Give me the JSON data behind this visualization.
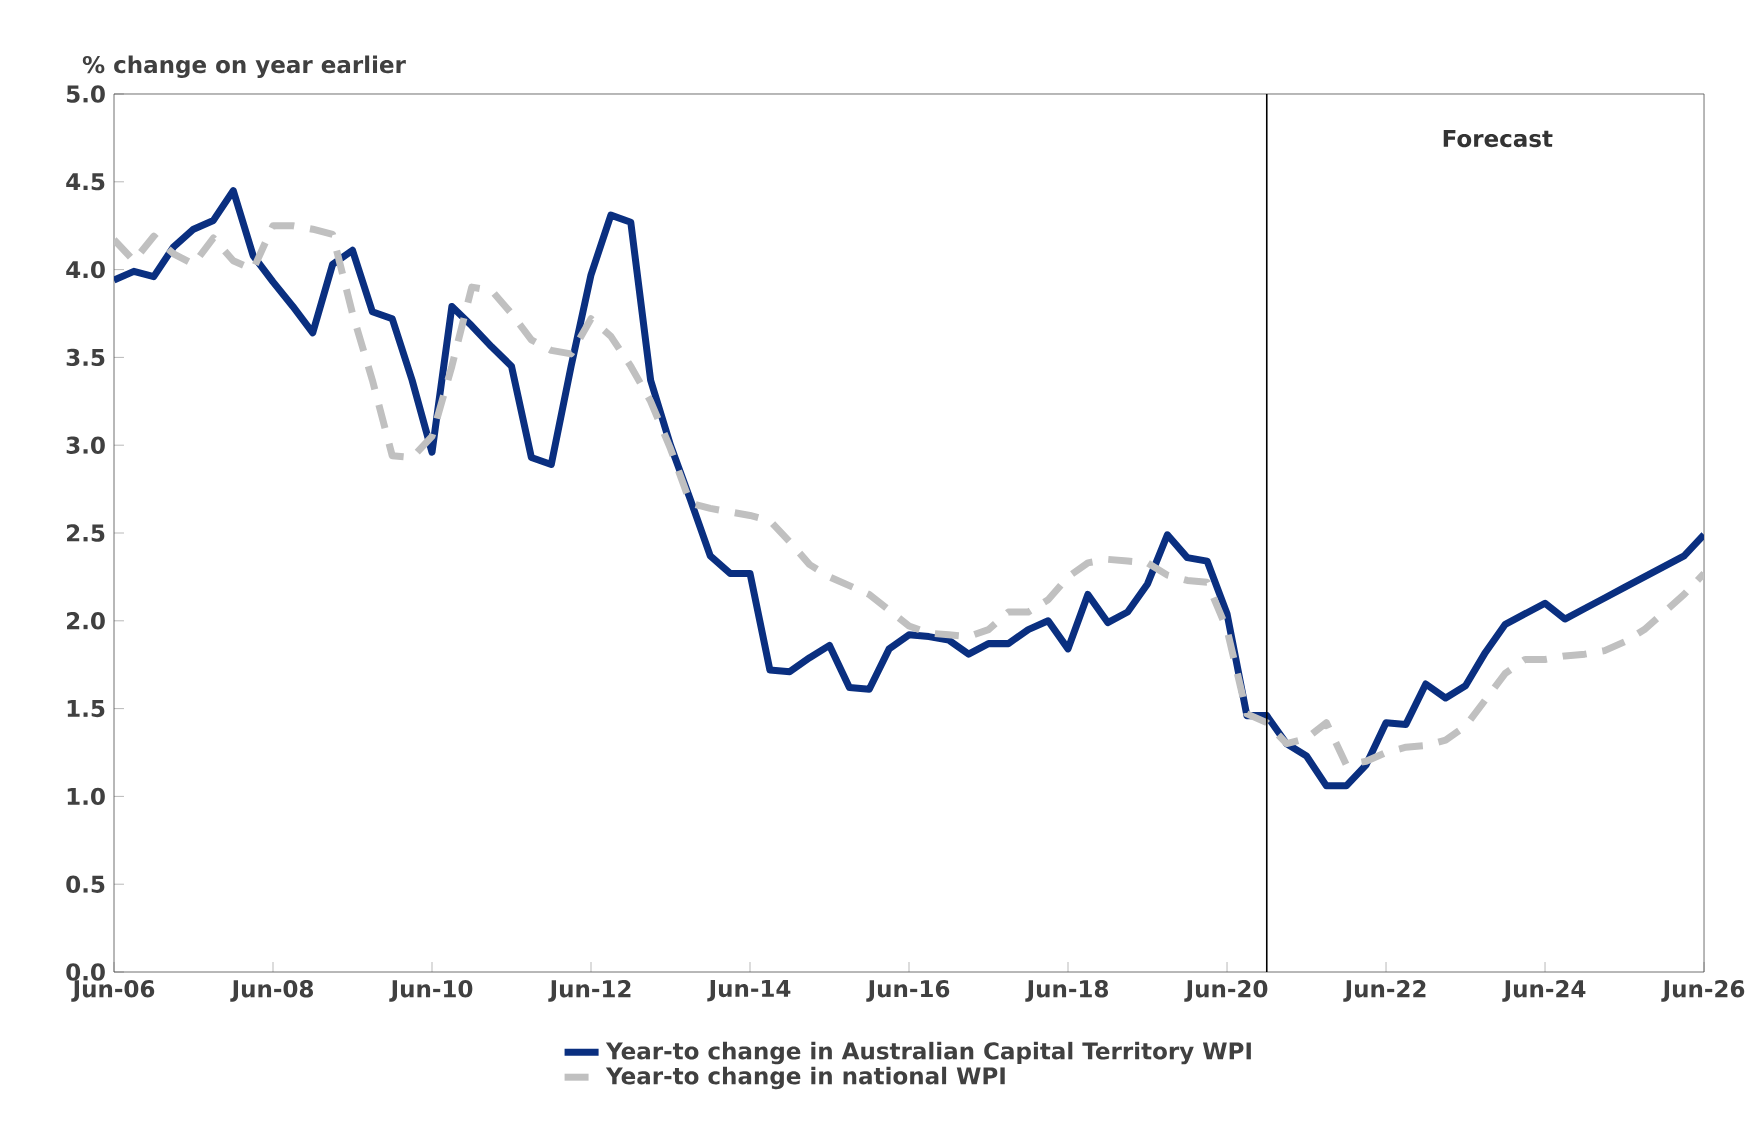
{
  "chart_data": {
    "type": "line",
    "ylabel": "% change on year earlier",
    "x": [
      "2006-06",
      "2006-09",
      "2006-12",
      "2007-03",
      "2007-06",
      "2007-09",
      "2007-12",
      "2008-03",
      "2008-06",
      "2008-09",
      "2008-12",
      "2009-03",
      "2009-06",
      "2009-09",
      "2009-12",
      "2010-03",
      "2010-06",
      "2010-09",
      "2010-12",
      "2011-03",
      "2011-06",
      "2011-09",
      "2011-12",
      "2012-03",
      "2012-06",
      "2012-09",
      "2012-12",
      "2013-03",
      "2013-06",
      "2013-09",
      "2013-12",
      "2014-03",
      "2014-06",
      "2014-09",
      "2014-12",
      "2015-03",
      "2015-06",
      "2015-09",
      "2015-12",
      "2016-03",
      "2016-06",
      "2016-09",
      "2016-12",
      "2017-03",
      "2017-06",
      "2017-09",
      "2017-12",
      "2018-03",
      "2018-06",
      "2018-09",
      "2018-12",
      "2019-03",
      "2019-06",
      "2019-09",
      "2019-12",
      "2020-03",
      "2020-06",
      "2020-09",
      "2020-12",
      "2021-03",
      "2021-06",
      "2021-09",
      "2021-12",
      "2022-03",
      "2022-06",
      "2022-09",
      "2022-12",
      "2023-03",
      "2023-06",
      "2023-09",
      "2023-12",
      "2024-03",
      "2024-06",
      "2024-09",
      "2024-12",
      "2025-03",
      "2025-06",
      "2025-09",
      "2025-12",
      "2026-03",
      "2026-06"
    ],
    "series": [
      {
        "name": "Year-to change in Australian Capital Territory WPI",
        "color": "#0a2f80",
        "line_style": "solid",
        "values": [
          3.94,
          3.99,
          3.96,
          4.13,
          4.23,
          4.28,
          4.45,
          4.08,
          3.93,
          3.79,
          3.64,
          4.03,
          4.11,
          3.76,
          3.72,
          3.37,
          2.96,
          3.79,
          3.68,
          3.56,
          3.45,
          2.93,
          2.89,
          3.45,
          3.97,
          4.31,
          4.27,
          3.37,
          3.0,
          2.69,
          2.37,
          2.27,
          2.27,
          1.72,
          1.71,
          1.79,
          1.86,
          1.62,
          1.61,
          1.84,
          1.92,
          1.91,
          1.89,
          1.81,
          1.87,
          1.87,
          1.95,
          2.0,
          1.84,
          2.15,
          1.99,
          2.05,
          2.21,
          2.49,
          2.36,
          2.34,
          2.04,
          1.46,
          1.46,
          1.3,
          1.23,
          1.06,
          1.06,
          1.18,
          1.42,
          1.41,
          1.64,
          1.56,
          1.63,
          1.82,
          1.98,
          2.04,
          2.1,
          2.01,
          2.07,
          2.13,
          2.19,
          2.25,
          2.31,
          2.37,
          2.49
        ]
      },
      {
        "name": "Year-to change in national WPI",
        "color": "#c0c0c0",
        "line_style": "dashed",
        "values": [
          4.17,
          4.05,
          4.19,
          4.09,
          4.03,
          4.18,
          4.05,
          4.0,
          4.25,
          4.25,
          4.23,
          4.2,
          3.75,
          3.37,
          2.94,
          2.93,
          3.05,
          3.45,
          3.9,
          3.88,
          3.75,
          3.6,
          3.54,
          3.52,
          3.72,
          3.62,
          3.45,
          3.25,
          2.98,
          2.67,
          2.64,
          2.62,
          2.6,
          2.57,
          2.45,
          2.32,
          2.25,
          2.2,
          2.15,
          2.06,
          1.97,
          1.93,
          1.92,
          1.91,
          1.95,
          2.05,
          2.05,
          2.12,
          2.25,
          2.33,
          2.35,
          2.34,
          2.33,
          2.26,
          2.23,
          2.22,
          1.95,
          1.47,
          1.42,
          1.3,
          1.33,
          1.42,
          1.18,
          1.2,
          1.25,
          1.28,
          1.29,
          1.32,
          1.4,
          1.55,
          1.7,
          1.78,
          1.78,
          1.8,
          1.81,
          1.83,
          1.88,
          1.95,
          2.05,
          2.15,
          2.27
        ]
      }
    ],
    "xlim": [
      "2006-06",
      "2026-06"
    ],
    "xticks": [
      {
        "value": "2006-06",
        "label": "Jun-06"
      },
      {
        "value": "2008-06",
        "label": "Jun-08"
      },
      {
        "value": "2010-06",
        "label": "Jun-10"
      },
      {
        "value": "2012-06",
        "label": "Jun-12"
      },
      {
        "value": "2014-06",
        "label": "Jun-14"
      },
      {
        "value": "2016-06",
        "label": "Jun-16"
      },
      {
        "value": "2018-06",
        "label": "Jun-18"
      },
      {
        "value": "2020-06",
        "label": "Jun-20"
      },
      {
        "value": "2022-06",
        "label": "Jun-22"
      },
      {
        "value": "2024-06",
        "label": "Jun-24"
      },
      {
        "value": "2026-06",
        "label": "Jun-26"
      }
    ],
    "ylim": [
      0,
      5
    ],
    "yticks": [
      {
        "value": 0,
        "label": "0.0"
      },
      {
        "value": 0.5,
        "label": "0.5"
      },
      {
        "value": 1,
        "label": "1.0"
      },
      {
        "value": 1.5,
        "label": "1.5"
      },
      {
        "value": 2,
        "label": "2.0"
      },
      {
        "value": 2.5,
        "label": "2.5"
      },
      {
        "value": 3,
        "label": "3.0"
      },
      {
        "value": 3.5,
        "label": "3.5"
      },
      {
        "value": 4,
        "label": "4.0"
      },
      {
        "value": 4.5,
        "label": "4.5"
      },
      {
        "value": 5,
        "label": "5.0"
      }
    ],
    "ref_lines": [
      {
        "axis": "x",
        "value": "2020-12",
        "color": "#000000"
      }
    ],
    "annotations": [
      "Forecast"
    ],
    "legend": "bottom"
  }
}
